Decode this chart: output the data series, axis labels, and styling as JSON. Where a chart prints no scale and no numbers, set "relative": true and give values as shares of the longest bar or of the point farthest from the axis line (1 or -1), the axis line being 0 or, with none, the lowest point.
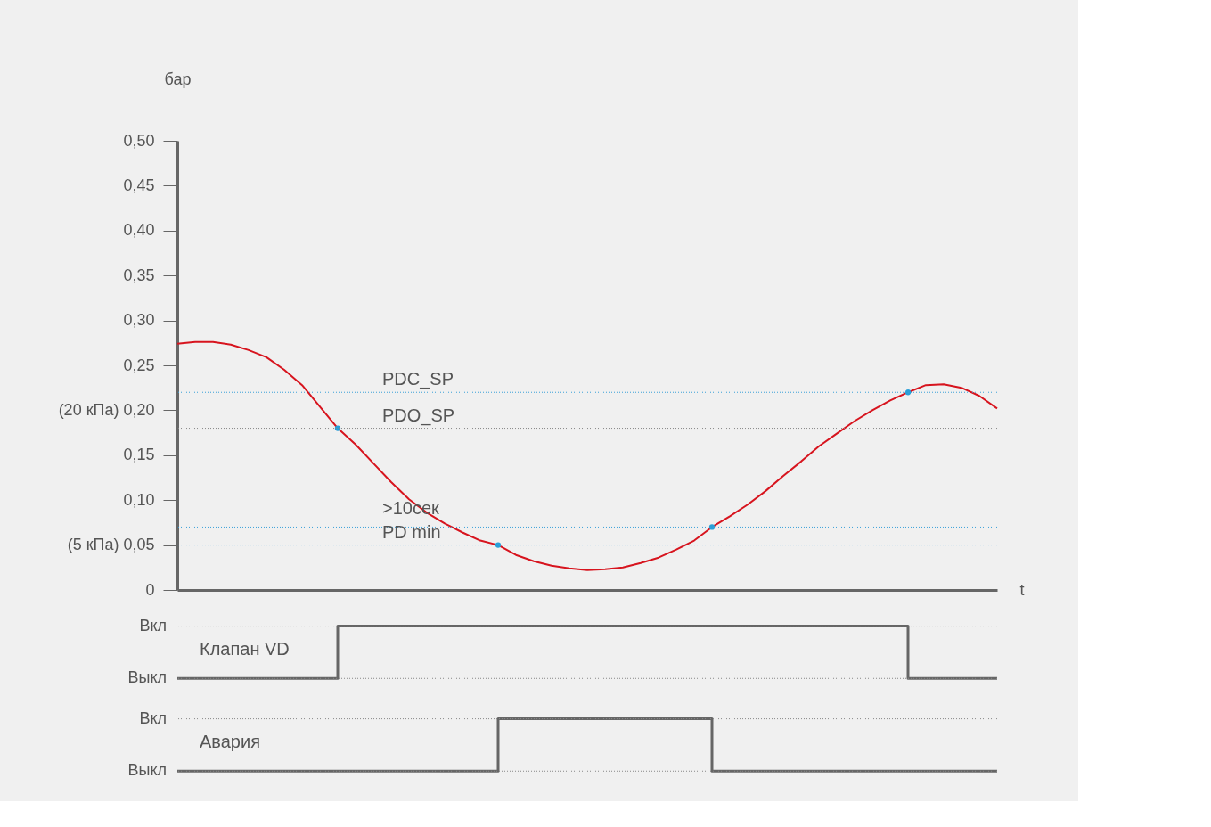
{
  "chart_data": [
    {
      "type": "line",
      "xlabel": "t",
      "ylabel": "бар",
      "ylim": [
        0,
        0.5
      ],
      "categories": [
        null,
        null,
        null,
        null,
        null,
        null,
        null,
        null,
        null,
        null,
        null,
        null,
        null,
        null,
        null,
        null,
        null,
        null,
        null,
        null,
        null,
        null,
        null,
        null,
        null,
        null,
        null,
        null,
        null,
        null,
        null,
        null,
        null,
        null,
        null,
        null,
        null,
        null,
        null,
        null,
        null,
        null,
        null,
        null,
        null,
        null,
        null
      ],
      "yticks": [
        {
          "value": 0,
          "label": "0"
        },
        {
          "value": 0.05,
          "label": "(5  кПа) 0,05"
        },
        {
          "value": 0.1,
          "label": "0,10"
        },
        {
          "value": 0.15,
          "label": "0,15"
        },
        {
          "value": 0.2,
          "label": "(20  кПа) 0,20"
        },
        {
          "value": 0.25,
          "label": "0,25"
        },
        {
          "value": 0.3,
          "label": "0,30"
        },
        {
          "value": 0.35,
          "label": "0,35"
        },
        {
          "value": 0.4,
          "label": "0,40"
        },
        {
          "value": 0.45,
          "label": "0,45"
        },
        {
          "value": 0.5,
          "label": "0,50"
        }
      ],
      "tick_labels": "y",
      "grid": false,
      "series": [
        {
          "color": "#d7141e",
          "values": [
            0.274,
            0.276,
            0.276,
            0.273,
            0.267,
            0.259,
            0.245,
            0.228,
            0.204,
            0.18,
            0.162,
            0.141,
            0.12,
            0.101,
            0.086,
            0.074,
            0.064,
            0.055,
            0.05,
            0.039,
            0.032,
            0.027,
            0.024,
            0.022,
            0.023,
            0.025,
            0.03,
            0.036,
            0.045,
            0.055,
            0.07,
            0.082,
            0.095,
            0.11,
            0.127,
            0.143,
            0.16,
            0.174,
            0.188,
            0.2,
            0.211,
            0.22,
            0.228,
            0.229,
            0.225,
            0.216,
            0.202
          ]
        },
        {
          "type": "scatter",
          "color": "#2a9fd8",
          "marker": "circle",
          "values": [
            null,
            null,
            null,
            null,
            null,
            null,
            null,
            null,
            null,
            0.18,
            null,
            null,
            null,
            null,
            null,
            null,
            null,
            null,
            0.05,
            null,
            null,
            null,
            null,
            null,
            null,
            null,
            null,
            null,
            null,
            null,
            0.07,
            null,
            null,
            null,
            null,
            null,
            null,
            null,
            null,
            null,
            null,
            0.22,
            null,
            null,
            null,
            null,
            null
          ]
        }
      ],
      "ref_lines": [
        {
          "axis": "y",
          "value": 0.22,
          "label": "PDC_SP",
          "color": "#3aa0d8",
          "line_style": "dotted"
        },
        {
          "axis": "y",
          "value": 0.18,
          "label": "PDO_SP",
          "color": "#888888",
          "line_style": "dotted"
        },
        {
          "axis": "y",
          "value": 0.07,
          "color": "#3aa0d8",
          "line_style": "dotted"
        },
        {
          "axis": "y",
          "value": 0.05,
          "label": "PD  min",
          "color": "#3aa0d8",
          "line_style": "dotted"
        }
      ],
      "annotations": [
        {
          "text": ">10сек",
          "y": 0.07
        }
      ]
    },
    {
      "type": "step",
      "relative": true,
      "categories": [
        null,
        null,
        null,
        null,
        null,
        null,
        null,
        null,
        null,
        null,
        null,
        null,
        null,
        null,
        null,
        null,
        null,
        null,
        null,
        null,
        null,
        null,
        null,
        null,
        null,
        null,
        null,
        null,
        null,
        null,
        null,
        null,
        null,
        null,
        null,
        null,
        null,
        null,
        null,
        null,
        null,
        null,
        null,
        null,
        null,
        null,
        null
      ],
      "ref_lines": [
        {
          "axis": "y",
          "value": 1,
          "label": "Вкл",
          "color": "#888888",
          "line_style": "dotted"
        },
        {
          "axis": "y",
          "value": 0,
          "label": "Выкл",
          "color": "#888888",
          "line_style": "dotted"
        }
      ],
      "series": [
        {
          "color": "#666666",
          "values": [
            0,
            0,
            0,
            0,
            0,
            0,
            0,
            0,
            0,
            1,
            1,
            1,
            1,
            1,
            1,
            1,
            1,
            1,
            1,
            1,
            1,
            1,
            1,
            1,
            1,
            1,
            1,
            1,
            1,
            1,
            1,
            1,
            1,
            1,
            1,
            1,
            1,
            1,
            1,
            1,
            1,
            0,
            0,
            0,
            0,
            0,
            0
          ]
        }
      ],
      "annotations": [
        "Клапан  VD"
      ]
    },
    {
      "type": "step",
      "relative": true,
      "categories": [
        null,
        null,
        null,
        null,
        null,
        null,
        null,
        null,
        null,
        null,
        null,
        null,
        null,
        null,
        null,
        null,
        null,
        null,
        null,
        null,
        null,
        null,
        null,
        null,
        null,
        null,
        null,
        null,
        null,
        null,
        null,
        null,
        null,
        null,
        null,
        null,
        null,
        null,
        null,
        null,
        null,
        null,
        null,
        null,
        null,
        null,
        null
      ],
      "ref_lines": [
        {
          "axis": "y",
          "value": 1,
          "label": "Вкл",
          "color": "#888888",
          "line_style": "dotted"
        },
        {
          "axis": "y",
          "value": 0,
          "label": "Выкл",
          "color": "#888888",
          "line_style": "dotted"
        }
      ],
      "series": [
        {
          "color": "#666666",
          "values": [
            0,
            0,
            0,
            0,
            0,
            0,
            0,
            0,
            0,
            0,
            0,
            0,
            0,
            0,
            0,
            0,
            0,
            0,
            1,
            1,
            1,
            1,
            1,
            1,
            1,
            1,
            1,
            1,
            1,
            1,
            0,
            0,
            0,
            0,
            0,
            0,
            0,
            0,
            0,
            0,
            0,
            0,
            0,
            0,
            0,
            0,
            0
          ]
        }
      ],
      "annotations": [
        "Авария"
      ]
    }
  ]
}
